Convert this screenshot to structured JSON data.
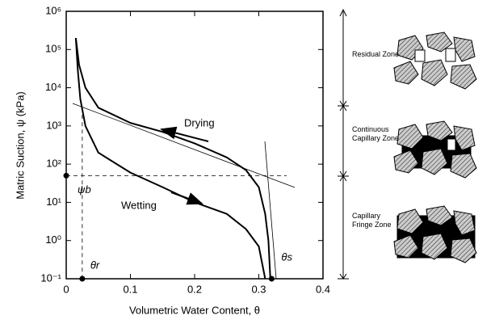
{
  "chart_data": {
    "type": "line",
    "x_label": "Volumetric Water Content, θ",
    "y_label": "Matric Suction, ψ (kPa)",
    "log_y": true,
    "xlim": [
      0,
      0.4
    ],
    "xticks": [
      0,
      0.1,
      0.2,
      0.3,
      0.4
    ],
    "ylim": [
      0.1,
      1000000
    ],
    "yticks": [
      {
        "value": 0.1,
        "label": "10⁻¹"
      },
      {
        "value": 1,
        "label": "10⁰"
      },
      {
        "value": 10,
        "label": "10¹"
      },
      {
        "value": 100,
        "label": "10²"
      },
      {
        "value": 1000,
        "label": "10³"
      },
      {
        "value": 10000,
        "label": "10⁴"
      },
      {
        "value": 100000,
        "label": "10⁵"
      },
      {
        "value": 1000000,
        "label": "10⁶"
      }
    ],
    "series": [
      {
        "name": "Drying",
        "color": "#000000",
        "x": [
          0.015,
          0.02,
          0.03,
          0.05,
          0.1,
          0.15,
          0.2,
          0.25,
          0.28,
          0.3,
          0.31,
          0.315,
          0.318
        ],
        "values": [
          200000,
          40000,
          10000,
          3000,
          1200,
          700,
          350,
          150,
          70,
          25,
          5,
          1,
          0.1
        ]
      },
      {
        "name": "Wetting",
        "color": "#000000",
        "x": [
          0.015,
          0.018,
          0.022,
          0.03,
          0.05,
          0.1,
          0.15,
          0.2,
          0.25,
          0.28,
          0.3,
          0.31
        ],
        "values": [
          200000,
          30000,
          5000,
          1000,
          200,
          60,
          25,
          10,
          5,
          2,
          0.7,
          0.1
        ]
      }
    ],
    "annotations": [
      {
        "text": "ψb",
        "x": 0,
        "y": 50
      },
      {
        "text": "θr",
        "x": 0.025,
        "y": 0.1
      },
      {
        "text": "θs",
        "x": 0.32,
        "y": 0.1
      }
    ],
    "zones": [
      "Residual Zone",
      "Continuous Capillary Zone",
      "Capillary Fringe Zone"
    ]
  }
}
